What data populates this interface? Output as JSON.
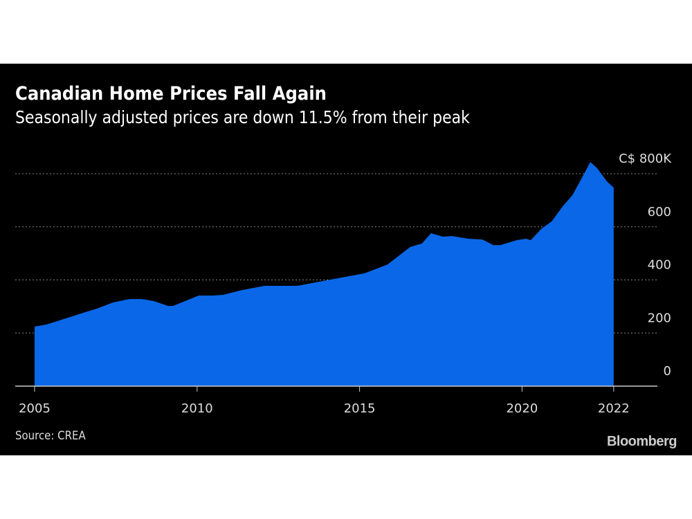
{
  "chart_data": {
    "type": "area",
    "title": "Canadian Home Prices Fall Again",
    "subtitle": "Seasonally adjusted prices are down 11.5% from their peak",
    "source": "Source: CREA",
    "brand": "Bloomberg",
    "xlabel": "",
    "ylabel": "",
    "unit_prefix": "C$",
    "unit_suffix": "K",
    "x_ticks": [
      "2005",
      "2010",
      "2015",
      "2020",
      "2022"
    ],
    "y_ticks": [
      "0",
      "200",
      "400",
      "600",
      "C$ 800K"
    ],
    "ylim": [
      0,
      800
    ],
    "grid": true,
    "fill_color": "#0a68e8",
    "x": [
      2005.0,
      2005.36,
      2005.7,
      2006.49,
      2006.92,
      2007.41,
      2007.92,
      2008.3,
      2008.68,
      2009.11,
      2009.26,
      2010.05,
      2010.47,
      2010.81,
      2011.39,
      2012.09,
      2013.09,
      2014.01,
      2015.16,
      2015.86,
      2016.56,
      2016.92,
      2017.2,
      2017.56,
      2017.84,
      2018.35,
      2018.78,
      2019.12,
      2019.33,
      2019.84,
      2020.12,
      2020.27,
      2020.61,
      2020.91,
      2021.25,
      2021.55,
      2021.89,
      2022.1,
      2022.31,
      2022.61,
      2022.82
    ],
    "values": [
      224,
      232,
      245,
      276,
      292,
      315,
      328,
      328,
      320,
      302,
      302,
      341,
      341,
      344,
      362,
      378,
      378,
      399,
      425,
      458,
      524,
      537,
      576,
      563,
      565,
      555,
      552,
      531,
      531,
      550,
      555,
      550,
      594,
      620,
      677,
      719,
      795,
      844,
      821,
      771,
      748
    ]
  }
}
